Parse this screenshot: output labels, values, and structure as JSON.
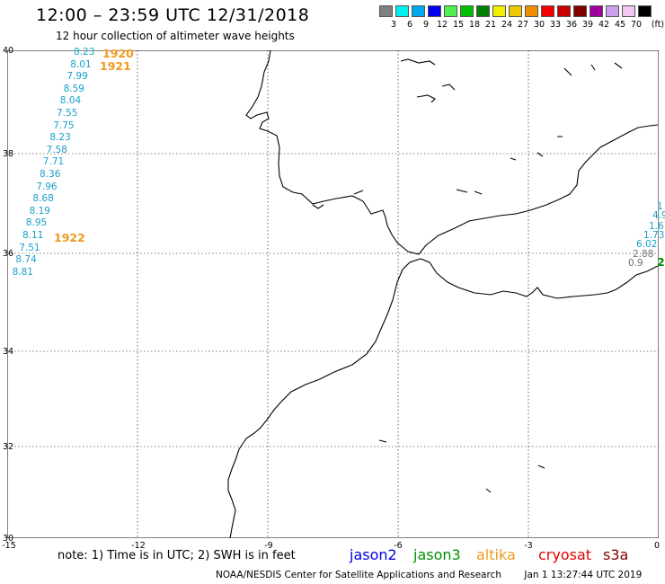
{
  "header": {
    "title": "12:00 – 23:59 UTC 12/31/2018",
    "subtitle": "12 hour collection of altimeter wave heights"
  },
  "scale": {
    "unit": "(ft)",
    "bins": [
      {
        "label": "3",
        "color": "#808080"
      },
      {
        "label": "6",
        "color": "#00f0f0"
      },
      {
        "label": "9",
        "color": "#00a8f0"
      },
      {
        "label": "12",
        "color": "#0000f0"
      },
      {
        "label": "15",
        "color": "#50f050"
      },
      {
        "label": "18",
        "color": "#00c000"
      },
      {
        "label": "21",
        "color": "#008000"
      },
      {
        "label": "24",
        "color": "#f0f000"
      },
      {
        "label": "27",
        "color": "#f0c800"
      },
      {
        "label": "30",
        "color": "#f09000"
      },
      {
        "label": "33",
        "color": "#f00000"
      },
      {
        "label": "36",
        "color": "#c80000"
      },
      {
        "label": "39",
        "color": "#800000"
      },
      {
        "label": "42",
        "color": "#a000a0"
      },
      {
        "label": "45",
        "color": "#d0a0f0"
      },
      {
        "label": "70",
        "color": "#f0c8f0"
      },
      {
        "label": "",
        "color": "#000000"
      }
    ]
  },
  "axes": {
    "y_ticks": [
      "40",
      "38",
      "36",
      "34",
      "32",
      "30"
    ],
    "x_ticks": [
      "-15",
      "-12",
      "-9",
      "-6",
      "-3",
      "0"
    ]
  },
  "observations_track1": [
    "8.23",
    "8.01",
    "7.99",
    "8.59",
    "8.04",
    "7.55",
    "7.75",
    "8.23",
    "7.58",
    "7.71",
    "8.36",
    "7.96",
    "8.68",
    "8.19",
    "8.95",
    "8.11",
    "7.51",
    "8.74",
    "8.81"
  ],
  "time_labels": [
    "1920",
    "1921",
    "1922"
  ],
  "observations_edge": [
    "1",
    "4.9",
    "1.6",
    "1.73",
    "6.02",
    "2.88",
    "0.9"
  ],
  "edge_marker": "2",
  "note": "note: 1) Time is in UTC; 2) SWH is in feet",
  "satellites": [
    {
      "name": "jason2",
      "color": "#0000e0"
    },
    {
      "name": "jason3",
      "color": "#009000"
    },
    {
      "name": "altika",
      "color": "#f09a1e"
    },
    {
      "name": "cryosat",
      "color": "#e00000"
    },
    {
      "name": "s3a",
      "color": "#800000"
    }
  ],
  "footer": {
    "credit": "NOAA/NESDIS Center for Satellite Applications and Research",
    "timestamp": "Jan  1 13:27:44 UTC 2019"
  }
}
